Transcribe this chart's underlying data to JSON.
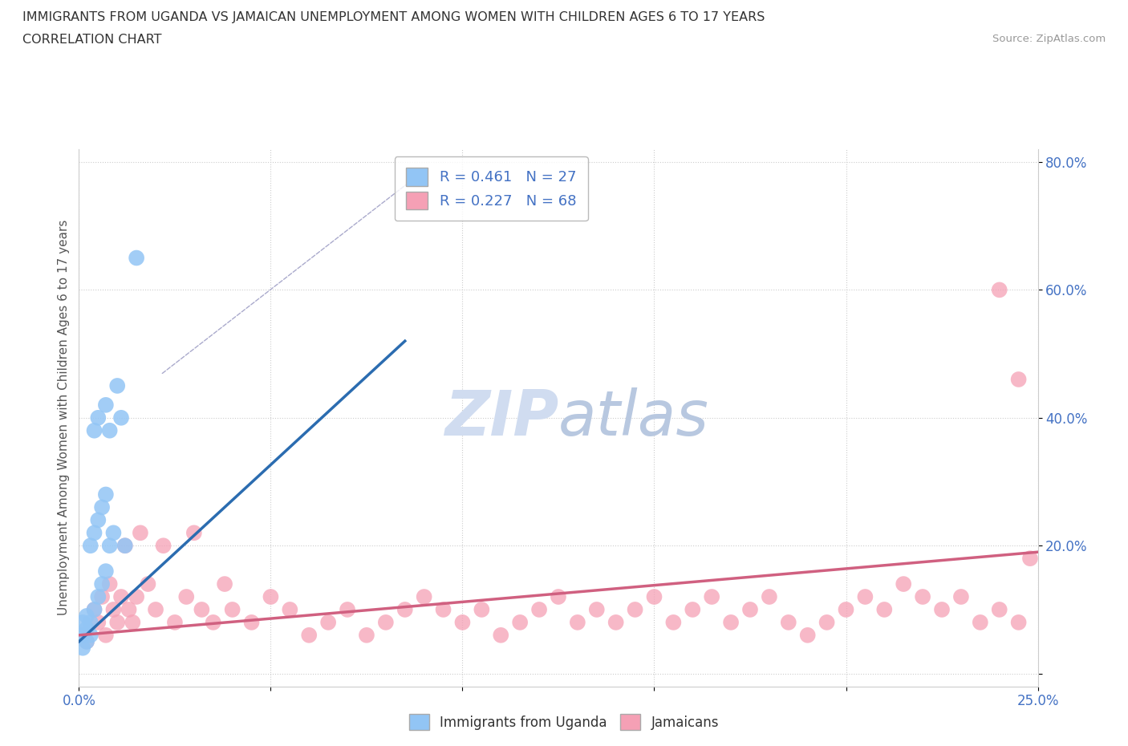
{
  "title_line1": "IMMIGRANTS FROM UGANDA VS JAMAICAN UNEMPLOYMENT AMONG WOMEN WITH CHILDREN AGES 6 TO 17 YEARS",
  "title_line2": "CORRELATION CHART",
  "source_text": "Source: ZipAtlas.com",
  "ylabel": "Unemployment Among Women with Children Ages 6 to 17 years",
  "xlim": [
    0.0,
    0.25
  ],
  "ylim": [
    -0.02,
    0.82
  ],
  "xticks": [
    0.0,
    0.05,
    0.1,
    0.15,
    0.2,
    0.25
  ],
  "yticks": [
    0.0,
    0.2,
    0.4,
    0.6,
    0.8
  ],
  "xtick_labels": [
    "0.0%",
    "",
    "",
    "",
    "",
    "25.0%"
  ],
  "ytick_labels": [
    "",
    "20.0%",
    "40.0%",
    "60.0%",
    "80.0%"
  ],
  "uganda_color": "#92C5F5",
  "jamaican_color": "#F5A0B5",
  "uganda_line_color": "#2B6CB0",
  "jamaican_line_color": "#D06080",
  "uganda_R": 0.461,
  "uganda_N": 27,
  "jamaican_R": 0.227,
  "jamaican_N": 68,
  "watermark_zip": "ZIP",
  "watermark_atlas": "atlas",
  "watermark_color": "#D0DCF0",
  "legend_label_uganda": "Immigrants from Uganda",
  "legend_label_jamaican": "Jamaicans",
  "uganda_x": [
    0.001,
    0.001,
    0.001,
    0.002,
    0.002,
    0.002,
    0.003,
    0.003,
    0.003,
    0.004,
    0.004,
    0.004,
    0.005,
    0.005,
    0.005,
    0.006,
    0.006,
    0.007,
    0.007,
    0.007,
    0.008,
    0.008,
    0.009,
    0.01,
    0.011,
    0.012,
    0.015
  ],
  "uganda_y": [
    0.04,
    0.06,
    0.08,
    0.05,
    0.07,
    0.09,
    0.06,
    0.08,
    0.2,
    0.1,
    0.22,
    0.38,
    0.12,
    0.24,
    0.4,
    0.14,
    0.26,
    0.16,
    0.28,
    0.42,
    0.2,
    0.38,
    0.22,
    0.45,
    0.4,
    0.2,
    0.65
  ],
  "jamaican_x": [
    0.002,
    0.004,
    0.005,
    0.006,
    0.007,
    0.008,
    0.009,
    0.01,
    0.011,
    0.012,
    0.013,
    0.014,
    0.015,
    0.016,
    0.018,
    0.02,
    0.022,
    0.025,
    0.028,
    0.03,
    0.032,
    0.035,
    0.038,
    0.04,
    0.045,
    0.05,
    0.055,
    0.06,
    0.065,
    0.07,
    0.075,
    0.08,
    0.085,
    0.09,
    0.095,
    0.1,
    0.105,
    0.11,
    0.115,
    0.12,
    0.125,
    0.13,
    0.135,
    0.14,
    0.145,
    0.15,
    0.155,
    0.16,
    0.165,
    0.17,
    0.175,
    0.18,
    0.185,
    0.19,
    0.195,
    0.2,
    0.205,
    0.21,
    0.215,
    0.22,
    0.225,
    0.23,
    0.235,
    0.24,
    0.245,
    0.248,
    0.245,
    0.24
  ],
  "jamaican_y": [
    0.05,
    0.1,
    0.08,
    0.12,
    0.06,
    0.14,
    0.1,
    0.08,
    0.12,
    0.2,
    0.1,
    0.08,
    0.12,
    0.22,
    0.14,
    0.1,
    0.2,
    0.08,
    0.12,
    0.22,
    0.1,
    0.08,
    0.14,
    0.1,
    0.08,
    0.12,
    0.1,
    0.06,
    0.08,
    0.1,
    0.06,
    0.08,
    0.1,
    0.12,
    0.1,
    0.08,
    0.1,
    0.06,
    0.08,
    0.1,
    0.12,
    0.08,
    0.1,
    0.08,
    0.1,
    0.12,
    0.08,
    0.1,
    0.12,
    0.08,
    0.1,
    0.12,
    0.08,
    0.06,
    0.08,
    0.1,
    0.12,
    0.1,
    0.14,
    0.12,
    0.1,
    0.12,
    0.08,
    0.1,
    0.08,
    0.18,
    0.46,
    0.6
  ],
  "uganda_line_x": [
    0.0,
    0.085
  ],
  "uganda_line_y": [
    0.05,
    0.52
  ],
  "jamaican_line_x": [
    0.0,
    0.25
  ],
  "jamaican_line_y": [
    0.06,
    0.19
  ],
  "dashed_line_axes": [
    [
      0.42,
      0.95
    ],
    [
      0.1,
      0.6
    ]
  ]
}
